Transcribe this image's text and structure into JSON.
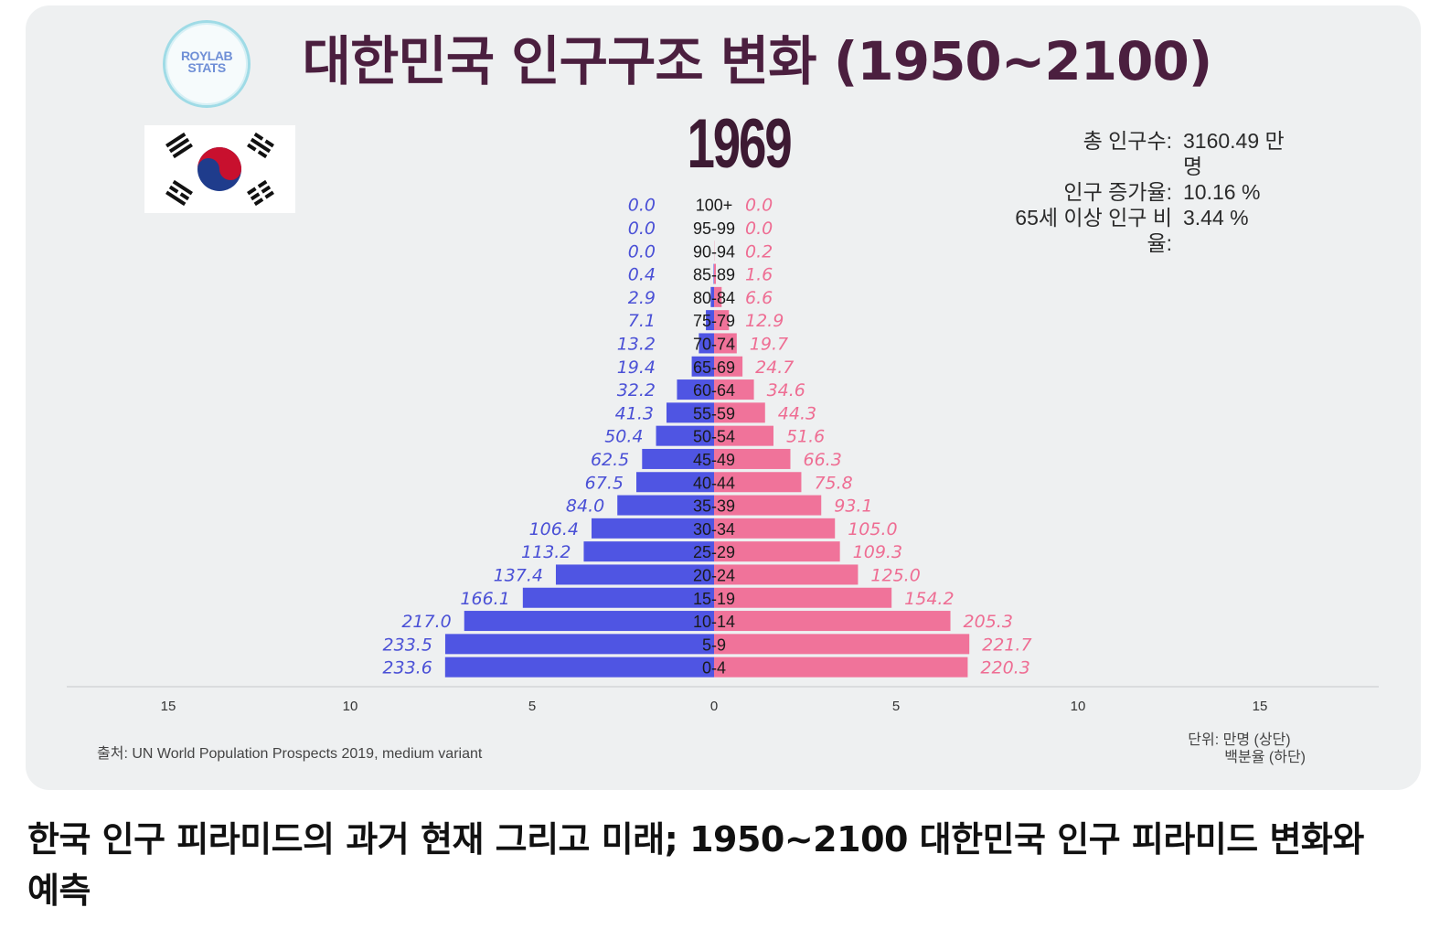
{
  "logo": {
    "text": "ROYLAB\nSTATS"
  },
  "title": "대한민국 인구구조 변화 (1950~2100)",
  "year": "1969",
  "stats": [
    {
      "label": "총 인구수:",
      "value": "3160.49 만명"
    },
    {
      "label": "인구 증가율:",
      "value": "10.16 %"
    },
    {
      "label": "65세 이상 인구 비율:",
      "value": "3.44 %"
    }
  ],
  "source": "출처: UN World Population Prospects 2019, medium variant",
  "unit": {
    "line1": "단위: 만명 (상단)",
    "line2": "백분율 (하단)"
  },
  "caption": "한국 인구 피라미드의 과거 현재 그리고 미래; 1950~2100 대한민국 인구 피라미드 변화와 예측",
  "colors": {
    "male": "#4f55e3",
    "female": "#f0739a",
    "male_text": "#4a50d6",
    "female_text": "#ee6d93",
    "title": "#4b1f3f"
  },
  "chart_data": {
    "type": "bar",
    "orientation": "horizontal-population-pyramid",
    "categories": [
      "100+",
      "95-99",
      "90-94",
      "85-89",
      "80-84",
      "75-79",
      "70-74",
      "65-69",
      "60-64",
      "55-59",
      "50-54",
      "45-49",
      "40-44",
      "35-39",
      "30-34",
      "25-29",
      "20-24",
      "15-19",
      "10-14",
      "5-9",
      "0-4"
    ],
    "series": [
      {
        "values": [
          0.0,
          0.0,
          0.0,
          0.4,
          2.9,
          7.1,
          13.2,
          19.4,
          32.2,
          41.3,
          50.4,
          62.5,
          67.5,
          84.0,
          106.4,
          113.2,
          137.4,
          166.1,
          217.0,
          233.5,
          233.6
        ],
        "labels": [
          "0.0",
          "0.0",
          "0.0",
          "0.4",
          "2.9",
          "7.1",
          "13.2",
          "19.4",
          "32.2",
          "41.3",
          "50.4",
          "62.5",
          "67.5",
          "84.0",
          "106.4",
          "113.2",
          "137.4",
          "166.1",
          "217.0",
          "233.5",
          "233.6"
        ]
      },
      {
        "values": [
          0.0,
          0.0,
          0.2,
          1.6,
          6.6,
          12.9,
          19.7,
          24.7,
          34.6,
          44.3,
          51.6,
          66.3,
          75.8,
          93.1,
          105.0,
          109.3,
          125.0,
          154.2,
          205.3,
          221.7,
          220.3
        ],
        "labels": [
          "0.0",
          "0.0",
          "0.2",
          "1.6",
          "6.6",
          "12.9",
          "19.7",
          "24.7",
          "34.6",
          "44.3",
          "51.6",
          "66.3",
          "75.8",
          "93.1",
          "105.0",
          "109.3",
          "125.0",
          "154.2",
          "205.3",
          "221.7",
          "220.3"
        ]
      }
    ],
    "xticks": [
      "15",
      "10",
      "5",
      "0",
      "5",
      "10",
      "15"
    ],
    "xlim": [
      -15,
      15
    ],
    "unit_per_tick": "percent of total population",
    "total_population_10k": 3160.49,
    "grid": false
  }
}
